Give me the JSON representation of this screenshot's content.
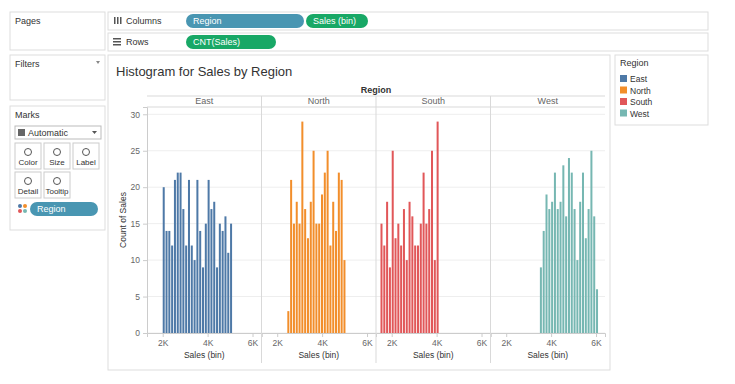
{
  "ui": {
    "pages": "Pages",
    "filters": "Filters",
    "marks": "Marks",
    "mark_type": "Automatic",
    "mark_buttons": [
      "Color",
      "Size",
      "Label",
      "Detail",
      "Tooltip"
    ],
    "columns_label": "Columns",
    "columns": [
      "Region",
      "Sales (bin)"
    ],
    "rows_label": "Rows",
    "rows": [
      "CNT(Sales)"
    ],
    "marks_pill": "Region"
  },
  "chart_data": {
    "type": "histogram",
    "title": "Histogram for Sales by Region",
    "facet_label": "Region",
    "x_label": "Sales (bin)",
    "y_label": "Count of Sales",
    "legend_title": "Region",
    "legend": "right",
    "grid": true,
    "xlim": [
      1300,
      6400
    ],
    "xticks": [
      {
        "value": 2000,
        "label": "2K"
      },
      {
        "value": 4000,
        "label": "4K"
      },
      {
        "value": 6000,
        "label": "6K"
      }
    ],
    "ylim": [
      0,
      31
    ],
    "yticks": [
      0,
      5,
      10,
      15,
      20,
      25,
      30
    ],
    "series": [
      {
        "name": "East",
        "color": "#4e79a7",
        "bins": [
          2000,
          2125,
          2250,
          2375,
          2500,
          2625,
          2750,
          2875,
          3000,
          3125,
          3250,
          3375,
          3500,
          3625,
          3750,
          3875,
          4000,
          4125,
          4250,
          4375,
          4500,
          4625,
          4750,
          4875,
          5000,
          5125
        ],
        "values": [
          20,
          14,
          14,
          12,
          21,
          22,
          22,
          17,
          12,
          21,
          12,
          10,
          21,
          14,
          9,
          15,
          21,
          17,
          18,
          9,
          15,
          14,
          16,
          11,
          15
        ]
      },
      {
        "name": "North",
        "color": "#f28e2b",
        "bins": [
          2450,
          2575,
          2700,
          2825,
          2950,
          3075,
          3200,
          3325,
          3450,
          3575,
          3700,
          3825,
          3950,
          4075,
          4200,
          4325,
          4450,
          4575,
          4700,
          4825,
          4950,
          5075
        ],
        "values": [
          3,
          21,
          15,
          18,
          15,
          29,
          17,
          13,
          18,
          25,
          15,
          15,
          19,
          22,
          25,
          12,
          18,
          14,
          22,
          21,
          10
        ]
      },
      {
        "name": "South",
        "color": "#e15759",
        "bins": [
          1500,
          1625,
          1750,
          1875,
          2000,
          2125,
          2250,
          2375,
          2500,
          2625,
          2750,
          2875,
          3000,
          3125,
          3250,
          3375,
          3500,
          3625,
          3750,
          3875,
          4000,
          4125
        ],
        "values": [
          15,
          12,
          18,
          9,
          25,
          13,
          15,
          12,
          17,
          10,
          18,
          16,
          12,
          12,
          15,
          22,
          15,
          17,
          25,
          10,
          29
        ]
      },
      {
        "name": "West",
        "color": "#76b7b2",
        "bins": [
          3500,
          3625,
          3750,
          3875,
          4000,
          4125,
          4250,
          4375,
          4500,
          4625,
          4750,
          4875,
          5000,
          5125,
          5250,
          5375,
          5500,
          5625,
          5750,
          5875,
          6000,
          6125
        ],
        "values": [
          9,
          14,
          19,
          17,
          18,
          22,
          17,
          18,
          23,
          16,
          24,
          22,
          17,
          10,
          18,
          22,
          13,
          17,
          25,
          16,
          6
        ]
      }
    ]
  }
}
